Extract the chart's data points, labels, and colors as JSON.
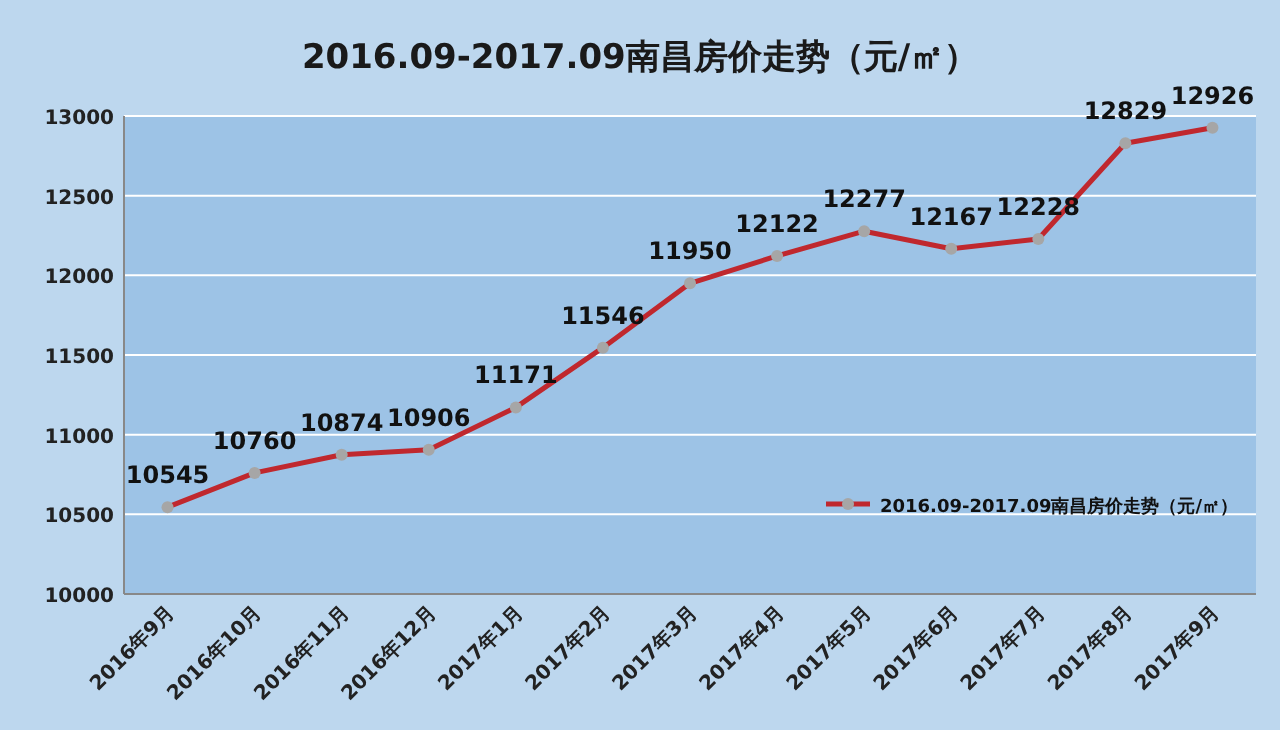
{
  "chart_data": {
    "type": "line",
    "title": "2016.09-2017.09南昌房价走势（元/㎡）",
    "categories": [
      "2016年9月",
      "2016年10月",
      "2016年11月",
      "2016年12月",
      "2017年1月",
      "2017年2月",
      "2017年3月",
      "2017年4月",
      "2017年5月",
      "2017年6月",
      "2017年7月",
      "2017年8月",
      "2017年9月"
    ],
    "series": [
      {
        "name": "2016.09-2017.09南昌房价走势（元/㎡）",
        "color": "#c0282e",
        "values": [
          10545,
          10760,
          10874,
          10906,
          11171,
          11546,
          11950,
          12122,
          12277,
          12167,
          12228,
          12829,
          12926
        ]
      }
    ],
    "ylim": [
      10000,
      13000
    ],
    "yticks": [
      10000,
      10500,
      11000,
      11500,
      12000,
      12500,
      13000
    ],
    "grid": "y",
    "legend": "bottom right",
    "marker": "circle",
    "line_style": "solid",
    "data_labels": true
  }
}
